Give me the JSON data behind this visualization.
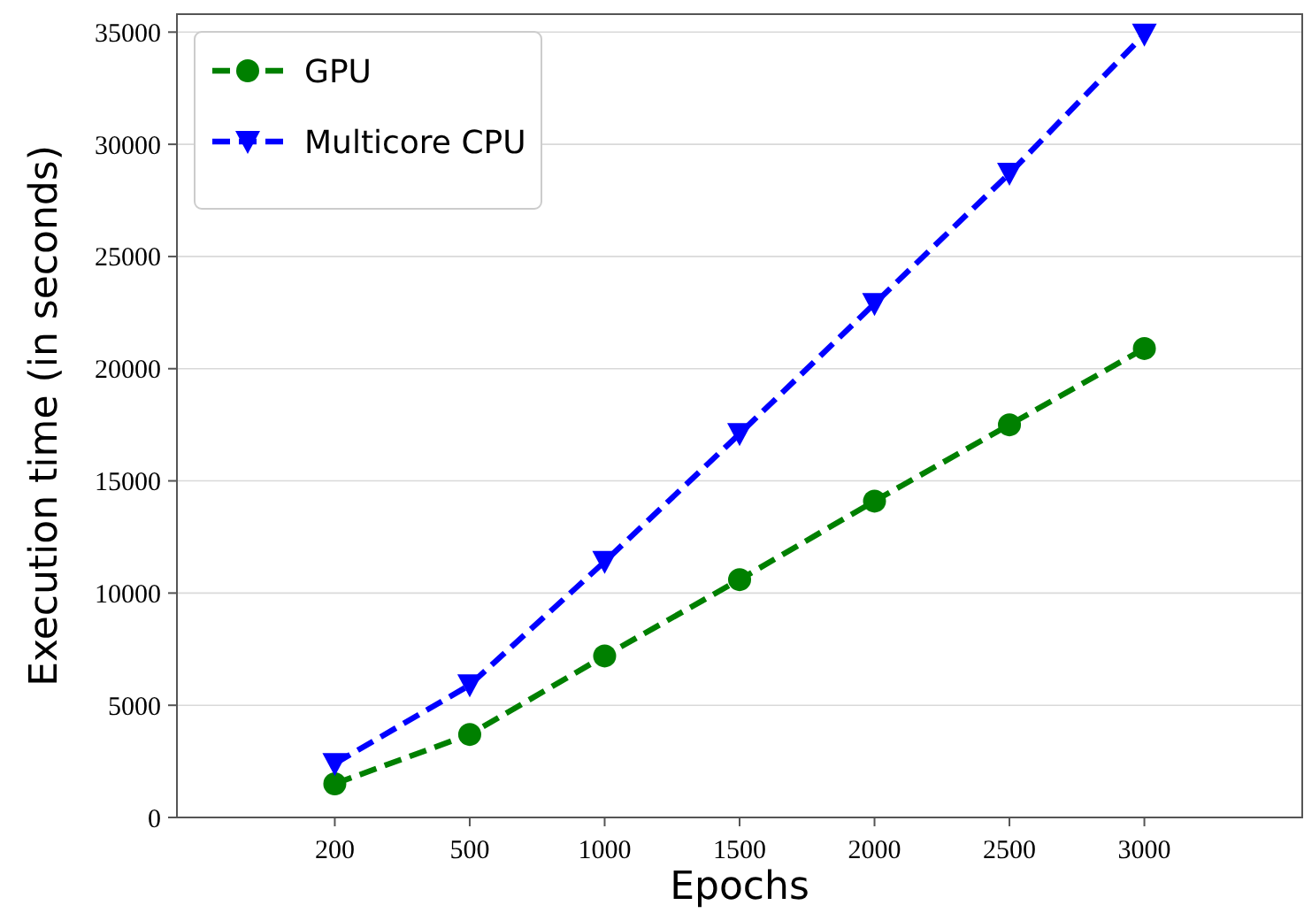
{
  "chart_data": {
    "type": "line",
    "xlabel": "Epochs",
    "ylabel": "Execution time (in seconds)",
    "categories": [
      "200",
      "500",
      "1000",
      "1500",
      "2000",
      "2500",
      "3000"
    ],
    "series": [
      {
        "name": "GPU",
        "color": "#008000",
        "marker": "circle",
        "values": [
          1500,
          3700,
          7200,
          10600,
          14100,
          17500,
          20900
        ]
      },
      {
        "name": "Multicore CPU",
        "color": "#0000ff",
        "marker": "triangle",
        "values": [
          2400,
          5900,
          11400,
          17100,
          22900,
          28700,
          34900
        ]
      }
    ],
    "ylim": [
      0,
      35800
    ],
    "yticks": [
      0,
      5000,
      10000,
      15000,
      20000,
      25000,
      30000,
      35000
    ],
    "grid": "y",
    "legend": "top left",
    "line_style": "dashed"
  }
}
